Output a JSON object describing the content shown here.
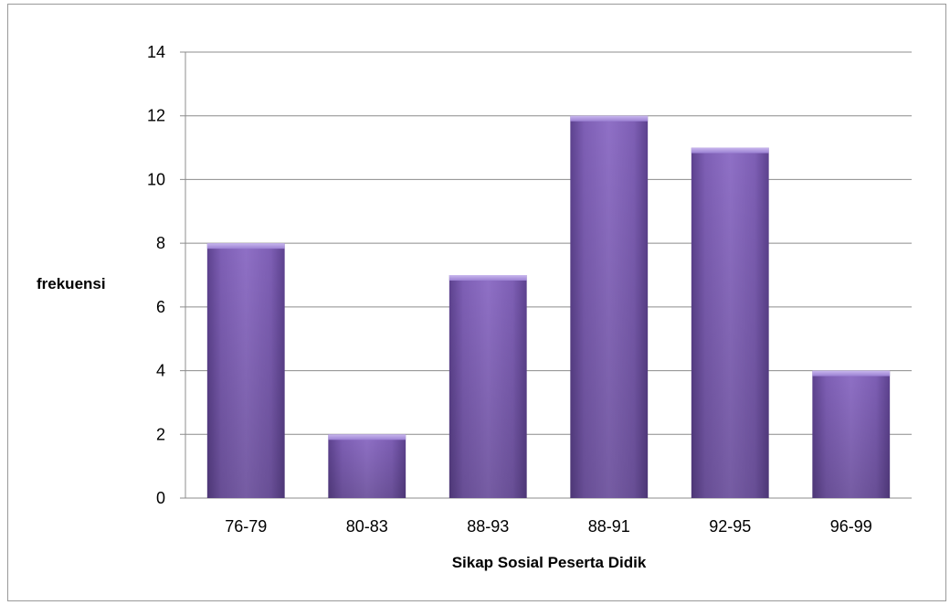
{
  "chart_data": {
    "type": "bar",
    "categories": [
      "76-79",
      "80-83",
      "88-93",
      "88-91",
      "92-95",
      "96-99"
    ],
    "values": [
      8,
      2,
      7,
      12,
      11,
      4
    ],
    "title": "",
    "xlabel": "Sikap Sosial Peserta Didik",
    "ylabel": "frekuensi",
    "ylim": [
      0,
      14
    ],
    "yticks": [
      0,
      2,
      4,
      6,
      8,
      10,
      12,
      14
    ],
    "grid": true,
    "legend": "none",
    "colors": {
      "bar_light": "#a58fd8",
      "bar_mid": "#7e5fb5",
      "bar_dark": "#5d428f",
      "grid": "#8c8c8c"
    }
  }
}
